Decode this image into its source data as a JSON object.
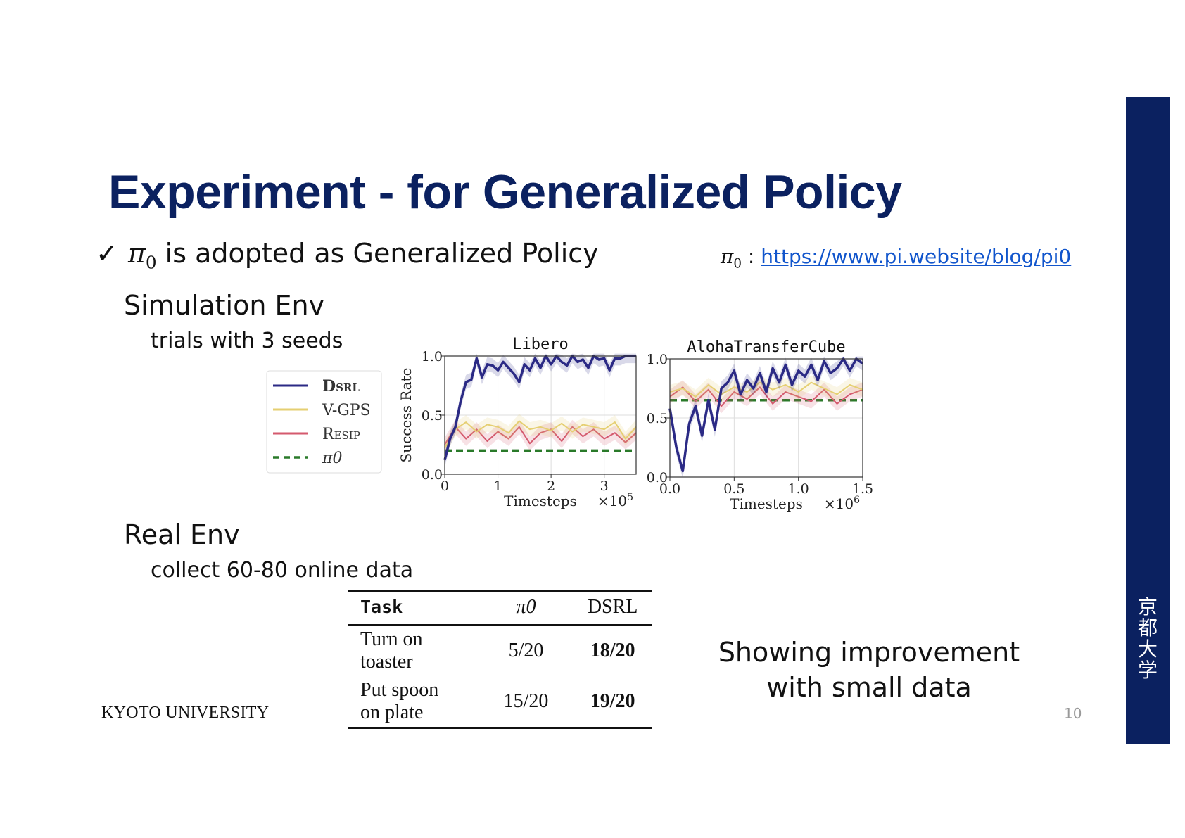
{
  "slide": {
    "title": "Experiment - for Generalized Policy",
    "bullet": {
      "check": "✓",
      "pi": "π",
      "pi_sub": "0",
      "text": "is adopted as Generalized Policy"
    },
    "reference": {
      "pi": "π",
      "pi_sub": "0",
      "sep": ":",
      "url": "https://www.pi.website/blog/pi0"
    },
    "sim_heading": "Simulation Env",
    "sim_sub": "trials with 3 seeds",
    "real_heading": "Real Env",
    "real_sub": "collect 60-80 online data",
    "takeaway_line1": "Showing improvement",
    "takeaway_line2": "with small data",
    "footer_university": "KYOTO UNIVERSITY",
    "page_number": "10",
    "sidebar_text": [
      "京",
      "都",
      "大",
      "学"
    ]
  },
  "legend": [
    {
      "name": "DSRL",
      "color": "#2b2a85",
      "style": "solid"
    },
    {
      "name": "V-GPS",
      "color": "#e5cf72",
      "style": "solid"
    },
    {
      "name": "RESIP",
      "color": "#d45a6e",
      "style": "solid"
    },
    {
      "name": "π0",
      "color": "#2a7a2a",
      "style": "dashed"
    }
  ],
  "chart_data": [
    {
      "type": "line",
      "title": "Libero",
      "xlabel": "Timesteps",
      "ylabel": "Success Rate",
      "x_multiplier": "×10^5",
      "xlim": [
        0,
        3.6
      ],
      "ylim": [
        0,
        1.0
      ],
      "xticks": [
        "0",
        "1",
        "2",
        "3"
      ],
      "yticks": [
        "0.0",
        "0.5",
        "1.0"
      ],
      "grid": true,
      "series": [
        {
          "name": "DSRL",
          "x": [
            0,
            0.1,
            0.2,
            0.3,
            0.4,
            0.5,
            0.6,
            0.7,
            0.8,
            0.9,
            1.0,
            1.1,
            1.2,
            1.3,
            1.4,
            1.5,
            1.6,
            1.7,
            1.8,
            1.9,
            2.0,
            2.1,
            2.2,
            2.3,
            2.4,
            2.5,
            2.6,
            2.7,
            2.8,
            2.9,
            3.0,
            3.1,
            3.2,
            3.3,
            3.4,
            3.5,
            3.6
          ],
          "y": [
            0.12,
            0.3,
            0.4,
            0.62,
            0.78,
            0.8,
            0.98,
            0.82,
            0.93,
            0.92,
            0.88,
            0.95,
            0.9,
            0.85,
            0.78,
            0.93,
            0.88,
            0.98,
            0.9,
            1.0,
            0.93,
            1.0,
            0.95,
            0.92,
            1.0,
            0.95,
            0.97,
            0.9,
            1.0,
            0.97,
            0.98,
            0.88,
            0.98,
            0.98,
            1.0,
            1.0,
            1.0
          ]
        },
        {
          "name": "V-GPS",
          "x": [
            0,
            0.2,
            0.4,
            0.6,
            0.8,
            1.0,
            1.2,
            1.4,
            1.6,
            1.8,
            2.0,
            2.2,
            2.4,
            2.6,
            2.8,
            3.0,
            3.2,
            3.4,
            3.6
          ],
          "y": [
            0.22,
            0.38,
            0.44,
            0.36,
            0.42,
            0.4,
            0.35,
            0.45,
            0.38,
            0.4,
            0.37,
            0.43,
            0.36,
            0.42,
            0.4,
            0.38,
            0.44,
            0.3,
            0.4
          ]
        },
        {
          "name": "RESIP",
          "x": [
            0,
            0.2,
            0.4,
            0.6,
            0.8,
            1.0,
            1.2,
            1.4,
            1.6,
            1.8,
            2.0,
            2.2,
            2.4,
            2.6,
            2.8,
            3.0,
            3.2,
            3.4,
            3.6
          ],
          "y": [
            0.25,
            0.4,
            0.3,
            0.38,
            0.28,
            0.36,
            0.3,
            0.4,
            0.26,
            0.35,
            0.38,
            0.28,
            0.4,
            0.32,
            0.38,
            0.3,
            0.35,
            0.27,
            0.35
          ]
        },
        {
          "name": "π0",
          "x": [
            0,
            3.6
          ],
          "y": [
            0.2,
            0.2
          ]
        }
      ]
    },
    {
      "type": "line",
      "title": "AlohaTransferCube",
      "xlabel": "Timesteps",
      "ylabel": "",
      "x_multiplier": "×10^6",
      "xlim": [
        0,
        1.5
      ],
      "ylim": [
        0,
        1.0
      ],
      "xticks": [
        "0.0",
        "0.5",
        "1.0",
        "1.5"
      ],
      "yticks": [
        "0.0",
        "0.5",
        "1.0"
      ],
      "grid": true,
      "series": [
        {
          "name": "DSRL",
          "x": [
            0,
            0.05,
            0.1,
            0.15,
            0.2,
            0.25,
            0.3,
            0.35,
            0.4,
            0.45,
            0.5,
            0.55,
            0.6,
            0.65,
            0.7,
            0.75,
            0.8,
            0.85,
            0.9,
            0.95,
            1.0,
            1.05,
            1.1,
            1.15,
            1.2,
            1.25,
            1.3,
            1.35,
            1.4,
            1.45,
            1.5
          ],
          "y": [
            0.58,
            0.25,
            0.05,
            0.45,
            0.6,
            0.35,
            0.65,
            0.4,
            0.75,
            0.8,
            0.9,
            0.7,
            0.82,
            0.75,
            0.88,
            0.72,
            0.92,
            0.8,
            0.95,
            0.78,
            0.9,
            0.85,
            0.95,
            0.82,
            0.98,
            0.88,
            0.92,
            1.0,
            0.9,
            1.0,
            0.96
          ]
        },
        {
          "name": "V-GPS",
          "x": [
            0,
            0.1,
            0.2,
            0.3,
            0.4,
            0.5,
            0.6,
            0.7,
            0.8,
            0.9,
            1.0,
            1.1,
            1.2,
            1.3,
            1.4,
            1.5
          ],
          "y": [
            0.72,
            0.75,
            0.68,
            0.78,
            0.7,
            0.76,
            0.72,
            0.8,
            0.74,
            0.78,
            0.72,
            0.8,
            0.75,
            0.7,
            0.78,
            0.74
          ]
        },
        {
          "name": "RESIP",
          "x": [
            0,
            0.1,
            0.2,
            0.3,
            0.4,
            0.5,
            0.6,
            0.7,
            0.8,
            0.9,
            1.0,
            1.1,
            1.2,
            1.3,
            1.4,
            1.5
          ],
          "y": [
            0.68,
            0.76,
            0.64,
            0.74,
            0.6,
            0.72,
            0.66,
            0.76,
            0.62,
            0.72,
            0.68,
            0.64,
            0.74,
            0.62,
            0.7,
            0.74
          ]
        },
        {
          "name": "π0",
          "x": [
            0,
            1.5
          ],
          "y": [
            0.65,
            0.65
          ]
        }
      ]
    },
    {
      "type": "table",
      "columns": [
        "Task",
        "π0",
        "DSRL"
      ],
      "rows": [
        {
          "task_line1": "Turn on",
          "task_line2": "toaster",
          "pi0": "5/20",
          "dsrl": "18/20"
        },
        {
          "task_line1": "Put spoon",
          "task_line2": "on plate",
          "pi0": "15/20",
          "dsrl": "19/20"
        }
      ]
    }
  ]
}
